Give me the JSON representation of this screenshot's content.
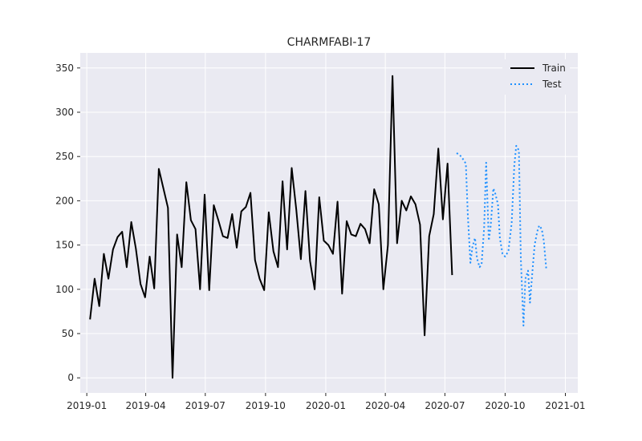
{
  "chart_data": {
    "type": "line",
    "title": "CHARMFABI-17",
    "xlabel": "",
    "ylabel": "",
    "grid": true,
    "legend_position": "top-right",
    "xlim": [
      "2018-12-22",
      "2021-01-20"
    ],
    "ylim": [
      -17,
      367
    ],
    "x_ticks": [
      "2019-01",
      "2019-04",
      "2019-07",
      "2019-10",
      "2020-01",
      "2020-04",
      "2020-07",
      "2020-10",
      "2021-01"
    ],
    "x_tick_dates": [
      "2019-01-01",
      "2019-04-01",
      "2019-07-01",
      "2019-10-01",
      "2020-01-01",
      "2020-04-01",
      "2020-07-01",
      "2020-10-01",
      "2021-01-01"
    ],
    "y_ticks": [
      0,
      50,
      100,
      150,
      200,
      250,
      300,
      350
    ],
    "series": [
      {
        "name": "Train",
        "color": "#000000",
        "style": "solid",
        "x": [
          "2019-01-06",
          "2019-01-13",
          "2019-01-20",
          "2019-01-27",
          "2019-02-03",
          "2019-02-10",
          "2019-02-17",
          "2019-02-24",
          "2019-03-03",
          "2019-03-10",
          "2019-03-17",
          "2019-03-24",
          "2019-03-31",
          "2019-04-07",
          "2019-04-14",
          "2019-04-21",
          "2019-04-28",
          "2019-05-05",
          "2019-05-12",
          "2019-05-19",
          "2019-05-26",
          "2019-06-02",
          "2019-06-09",
          "2019-06-16",
          "2019-06-23",
          "2019-06-30",
          "2019-07-07",
          "2019-07-14",
          "2019-07-21",
          "2019-07-28",
          "2019-08-04",
          "2019-08-11",
          "2019-08-18",
          "2019-08-25",
          "2019-09-01",
          "2019-09-08",
          "2019-09-15",
          "2019-09-22",
          "2019-09-29",
          "2019-10-06",
          "2019-10-13",
          "2019-10-20",
          "2019-10-27",
          "2019-11-03",
          "2019-11-10",
          "2019-11-17",
          "2019-11-24",
          "2019-12-01",
          "2019-12-08",
          "2019-12-15",
          "2019-12-22",
          "2019-12-29",
          "2020-01-05",
          "2020-01-12",
          "2020-01-19",
          "2020-01-26",
          "2020-02-02",
          "2020-02-09",
          "2020-02-16",
          "2020-02-23",
          "2020-03-01",
          "2020-03-08",
          "2020-03-15",
          "2020-03-22",
          "2020-03-29",
          "2020-04-05",
          "2020-04-12",
          "2020-04-19",
          "2020-04-26",
          "2020-05-03",
          "2020-05-10",
          "2020-05-17",
          "2020-05-24",
          "2020-05-31",
          "2020-06-07",
          "2020-06-14",
          "2020-06-21",
          "2020-06-28",
          "2020-07-05",
          "2020-07-12"
        ],
        "values": [
          66,
          112,
          81,
          140,
          112,
          145,
          159,
          165,
          125,
          176,
          146,
          106,
          91,
          137,
          101,
          236,
          214,
          192,
          0,
          162,
          125,
          221,
          178,
          168,
          100,
          207,
          99,
          195,
          178,
          160,
          158,
          185,
          147,
          188,
          193,
          209,
          133,
          112,
          99,
          187,
          143,
          125,
          222,
          145,
          237,
          190,
          134,
          211,
          132,
          100,
          204,
          155,
          150,
          140,
          199,
          95,
          177,
          162,
          160,
          174,
          168,
          152,
          213,
          196,
          100,
          150,
          341,
          152,
          200,
          189,
          205,
          196,
          173,
          48,
          160,
          185,
          259,
          179,
          242,
          116
        ]
      },
      {
        "name": "Test",
        "color": "#1e90ff",
        "style": "dotted",
        "x": [
          "2020-07-19",
          "2020-07-26",
          "2020-08-02",
          "2020-08-05",
          "2020-08-09",
          "2020-08-12",
          "2020-08-16",
          "2020-08-19",
          "2020-08-23",
          "2020-08-26",
          "2020-08-30",
          "2020-09-02",
          "2020-09-06",
          "2020-09-09",
          "2020-09-13",
          "2020-09-16",
          "2020-09-20",
          "2020-09-23",
          "2020-09-27",
          "2020-10-01",
          "2020-10-06",
          "2020-10-11",
          "2020-10-15",
          "2020-10-18",
          "2020-10-22",
          "2020-10-25",
          "2020-10-29",
          "2020-11-01",
          "2020-11-05",
          "2020-11-08",
          "2020-11-12",
          "2020-11-15",
          "2020-11-19",
          "2020-11-22",
          "2020-11-26",
          "2020-11-29",
          "2020-12-03",
          "2020-12-06",
          "2020-12-10",
          "2020-12-13",
          "2020-12-17",
          "2020-12-20",
          "2020-12-24",
          "2020-12-27",
          "2020-12-31"
        ],
        "values": [
          254,
          250,
          242,
          185,
          130,
          148,
          158,
          135,
          125,
          128,
          170,
          243,
          155,
          172,
          214,
          208,
          196,
          158,
          140,
          137,
          143,
          175,
          240,
          262,
          257,
          135,
          59,
          112,
          121,
          85,
          123,
          150,
          165,
          172,
          168,
          155,
          122,
          null,
          null,
          null,
          null,
          null,
          null,
          null,
          null
        ]
      }
    ]
  }
}
